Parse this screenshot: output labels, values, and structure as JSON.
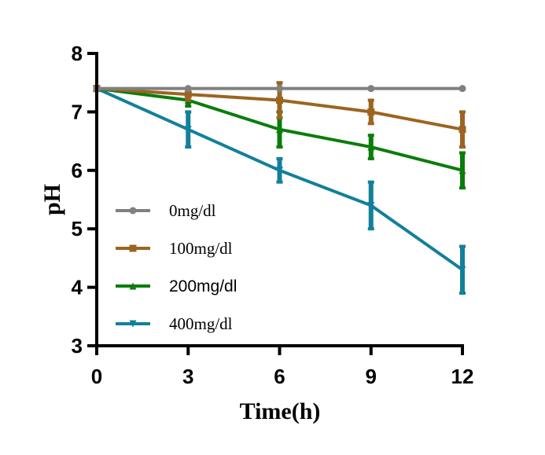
{
  "chart_data": {
    "type": "line",
    "title": "",
    "xlabel": "Time(h)",
    "ylabel": "pH",
    "x": [
      0,
      3,
      6,
      9,
      12
    ],
    "xlim": [
      0,
      12
    ],
    "ylim": [
      3,
      8
    ],
    "xticks": [
      "0",
      "3",
      "6",
      "9",
      "12"
    ],
    "yticks": [
      "3",
      "4",
      "5",
      "6",
      "7",
      "8"
    ],
    "grid": false,
    "legend_position": "center-left",
    "series": [
      {
        "name": "0mg/dl",
        "color": "#808080",
        "marker": "circle",
        "values": [
          7.4,
          7.4,
          7.4,
          7.4,
          7.4
        ],
        "errors": [
          0,
          0,
          0,
          0,
          0
        ]
      },
      {
        "name": "100mg/dl",
        "color": "#9B6420",
        "marker": "square",
        "values": [
          7.4,
          7.3,
          7.2,
          7.0,
          6.7
        ],
        "errors": [
          0,
          0.1,
          0.3,
          0.2,
          0.3
        ]
      },
      {
        "name": "200mg/dl",
        "color": "#0A7D0A",
        "marker": "triangle-up",
        "values": [
          7.4,
          7.2,
          6.7,
          6.4,
          6.0
        ],
        "errors": [
          0,
          0.1,
          0.3,
          0.2,
          0.3
        ]
      },
      {
        "name": "400mg/dl",
        "color": "#12809A",
        "marker": "triangle-down",
        "values": [
          7.4,
          6.7,
          6.0,
          5.4,
          4.3
        ],
        "errors": [
          0,
          0.3,
          0.2,
          0.4,
          0.4
        ]
      }
    ]
  }
}
